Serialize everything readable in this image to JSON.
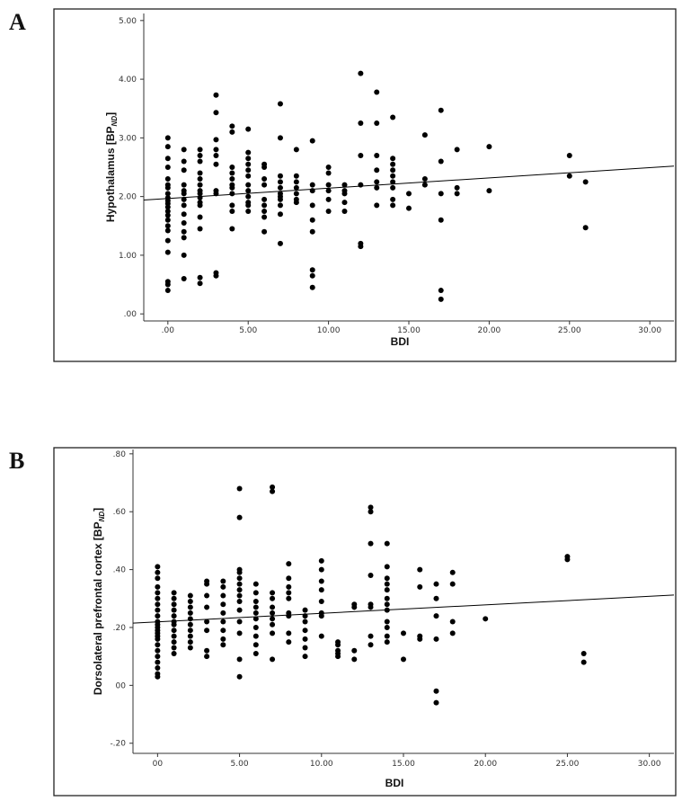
{
  "panels": [
    {
      "letter": "A"
    },
    {
      "letter": "B"
    }
  ],
  "chart_data": [
    {
      "type": "scatter",
      "xlabel": "BDI",
      "ylabel_main": "Hypothalamus [BP",
      "ylabel_sub": "ND",
      "ylabel_end": "]",
      "xlim": [
        -1.5,
        31.5
      ],
      "ylim": [
        -0.12,
        5.12
      ],
      "xticks": [
        0,
        5,
        10,
        15,
        20,
        25,
        30
      ],
      "xtick_labels": [
        ".00",
        "5.00",
        "10.00",
        "15.00",
        "20.00",
        "25.00",
        "30.00"
      ],
      "yticks": [
        0,
        1,
        2,
        3,
        4,
        5
      ],
      "ytick_labels": [
        ".00",
        "1.00",
        "2.00",
        "3.00",
        "4.00",
        "5.00"
      ],
      "fit_line": {
        "x": [
          -1.5,
          31.5
        ],
        "y": [
          1.94,
          2.52
        ]
      },
      "points": [
        [
          0,
          3.0
        ],
        [
          0,
          2.85
        ],
        [
          0,
          2.65
        ],
        [
          0,
          2.5
        ],
        [
          0,
          2.3
        ],
        [
          0,
          2.2
        ],
        [
          0,
          2.15
        ],
        [
          0,
          2.05
        ],
        [
          0,
          1.98
        ],
        [
          0,
          1.93
        ],
        [
          0,
          1.88
        ],
        [
          0,
          1.82
        ],
        [
          0,
          1.75
        ],
        [
          0,
          1.68
        ],
        [
          0,
          1.6
        ],
        [
          0,
          1.5
        ],
        [
          0,
          1.42
        ],
        [
          0,
          1.25
        ],
        [
          0,
          1.05
        ],
        [
          0,
          0.55
        ],
        [
          0,
          0.5
        ],
        [
          0,
          0.4
        ],
        [
          1,
          2.8
        ],
        [
          1,
          2.6
        ],
        [
          1,
          2.45
        ],
        [
          1,
          2.2
        ],
        [
          1,
          2.1
        ],
        [
          1,
          2.05
        ],
        [
          1,
          1.95
        ],
        [
          1,
          1.85
        ],
        [
          1,
          1.7
        ],
        [
          1,
          1.55
        ],
        [
          1,
          1.4
        ],
        [
          1,
          1.3
        ],
        [
          1,
          1.0
        ],
        [
          1,
          0.6
        ],
        [
          2,
          2.8
        ],
        [
          2,
          2.7
        ],
        [
          2,
          2.6
        ],
        [
          2,
          2.4
        ],
        [
          2,
          2.3
        ],
        [
          2,
          2.2
        ],
        [
          2,
          2.1
        ],
        [
          2,
          2.05
        ],
        [
          2,
          1.98
        ],
        [
          2,
          1.9
        ],
        [
          2,
          1.85
        ],
        [
          2,
          1.65
        ],
        [
          2,
          1.45
        ],
        [
          2,
          0.62
        ],
        [
          2,
          0.52
        ],
        [
          3,
          3.73
        ],
        [
          3,
          3.43
        ],
        [
          3,
          2.97
        ],
        [
          3,
          2.8
        ],
        [
          3,
          2.7
        ],
        [
          3,
          2.55
        ],
        [
          3,
          2.1
        ],
        [
          3,
          2.05
        ],
        [
          3,
          0.7
        ],
        [
          3,
          0.65
        ],
        [
          4,
          3.2
        ],
        [
          4,
          3.1
        ],
        [
          4,
          2.5
        ],
        [
          4,
          2.4
        ],
        [
          4,
          2.3
        ],
        [
          4,
          2.2
        ],
        [
          4,
          2.15
        ],
        [
          4,
          2.05
        ],
        [
          4,
          1.85
        ],
        [
          4,
          1.75
        ],
        [
          4,
          1.45
        ],
        [
          5,
          3.15
        ],
        [
          5,
          2.75
        ],
        [
          5,
          2.65
        ],
        [
          5,
          2.55
        ],
        [
          5,
          2.45
        ],
        [
          5,
          2.35
        ],
        [
          5,
          2.2
        ],
        [
          5,
          2.1
        ],
        [
          5,
          2.0
        ],
        [
          5,
          1.9
        ],
        [
          5,
          1.85
        ],
        [
          5,
          1.75
        ],
        [
          6,
          2.55
        ],
        [
          6,
          2.5
        ],
        [
          6,
          2.3
        ],
        [
          6,
          2.2
        ],
        [
          6,
          1.95
        ],
        [
          6,
          1.85
        ],
        [
          6,
          1.75
        ],
        [
          6,
          1.65
        ],
        [
          6,
          1.4
        ],
        [
          7,
          3.58
        ],
        [
          7,
          3.0
        ],
        [
          7,
          2.35
        ],
        [
          7,
          2.25
        ],
        [
          7,
          2.15
        ],
        [
          7,
          2.05
        ],
        [
          7,
          2.0
        ],
        [
          7,
          1.95
        ],
        [
          7,
          1.85
        ],
        [
          7,
          1.7
        ],
        [
          7,
          1.2
        ],
        [
          8,
          2.8
        ],
        [
          8,
          2.35
        ],
        [
          8,
          2.25
        ],
        [
          8,
          2.15
        ],
        [
          8,
          2.05
        ],
        [
          8,
          1.95
        ],
        [
          8,
          1.9
        ],
        [
          9,
          2.95
        ],
        [
          9,
          2.2
        ],
        [
          9,
          2.1
        ],
        [
          9,
          1.85
        ],
        [
          9,
          1.6
        ],
        [
          9,
          1.4
        ],
        [
          9,
          0.75
        ],
        [
          9,
          0.65
        ],
        [
          9,
          0.45
        ],
        [
          10,
          2.5
        ],
        [
          10,
          2.4
        ],
        [
          10,
          2.2
        ],
        [
          10,
          2.1
        ],
        [
          10,
          1.95
        ],
        [
          10,
          1.75
        ],
        [
          11,
          2.2
        ],
        [
          11,
          2.1
        ],
        [
          11,
          2.05
        ],
        [
          11,
          1.9
        ],
        [
          11,
          1.75
        ],
        [
          12,
          4.1
        ],
        [
          12,
          3.25
        ],
        [
          12,
          2.7
        ],
        [
          12,
          2.2
        ],
        [
          12,
          1.2
        ],
        [
          12,
          1.15
        ],
        [
          13,
          3.78
        ],
        [
          13,
          3.25
        ],
        [
          13,
          2.7
        ],
        [
          13,
          2.45
        ],
        [
          13,
          2.25
        ],
        [
          13,
          2.15
        ],
        [
          13,
          1.85
        ],
        [
          14,
          3.35
        ],
        [
          14,
          2.65
        ],
        [
          14,
          2.55
        ],
        [
          14,
          2.45
        ],
        [
          14,
          2.35
        ],
        [
          14,
          2.25
        ],
        [
          14,
          2.15
        ],
        [
          14,
          1.95
        ],
        [
          14,
          1.85
        ],
        [
          15,
          2.05
        ],
        [
          15,
          1.8
        ],
        [
          16,
          3.05
        ],
        [
          16,
          2.3
        ],
        [
          16,
          2.2
        ],
        [
          17,
          3.47
        ],
        [
          17,
          2.6
        ],
        [
          17,
          2.05
        ],
        [
          17,
          1.6
        ],
        [
          17,
          0.4
        ],
        [
          17,
          0.25
        ],
        [
          18,
          2.8
        ],
        [
          18,
          2.15
        ],
        [
          18,
          2.05
        ],
        [
          20,
          2.85
        ],
        [
          20,
          2.1
        ],
        [
          25,
          2.7
        ],
        [
          25,
          2.35
        ],
        [
          26,
          2.25
        ],
        [
          26,
          1.47
        ]
      ]
    },
    {
      "type": "scatter",
      "xlabel": "BDI",
      "ylabel_main": "Dorsolateral prefrontal cortex [BP",
      "ylabel_sub": "ND",
      "ylabel_end": "]",
      "xlim": [
        -1.5,
        31.5
      ],
      "ylim": [
        -0.235,
        0.815
      ],
      "xticks": [
        0,
        5,
        10,
        15,
        20,
        25,
        30
      ],
      "xtick_labels": [
        "00",
        "5.00",
        "10.00",
        "15.00",
        "20.00",
        "25.00",
        "30.00"
      ],
      "yticks": [
        -0.2,
        0,
        0.2,
        0.4,
        0.6,
        0.8
      ],
      "ytick_labels": [
        "-.20",
        "00",
        ".20",
        ".40",
        ".60",
        ".80"
      ],
      "fit_line": {
        "x": [
          -1.5,
          31.5
        ],
        "y": [
          0.215,
          0.312
        ]
      },
      "points": [
        [
          0,
          0.41
        ],
        [
          0,
          0.39
        ],
        [
          0,
          0.37
        ],
        [
          0,
          0.34
        ],
        [
          0,
          0.32
        ],
        [
          0,
          0.3
        ],
        [
          0,
          0.28
        ],
        [
          0,
          0.26
        ],
        [
          0,
          0.24
        ],
        [
          0,
          0.22
        ],
        [
          0,
          0.21
        ],
        [
          0,
          0.2
        ],
        [
          0,
          0.19
        ],
        [
          0,
          0.18
        ],
        [
          0,
          0.17
        ],
        [
          0,
          0.16
        ],
        [
          0,
          0.14
        ],
        [
          0,
          0.12
        ],
        [
          0,
          0.1
        ],
        [
          0,
          0.08
        ],
        [
          0,
          0.06
        ],
        [
          0,
          0.04
        ],
        [
          0,
          0.03
        ],
        [
          1,
          0.32
        ],
        [
          1,
          0.3
        ],
        [
          1,
          0.28
        ],
        [
          1,
          0.26
        ],
        [
          1,
          0.24
        ],
        [
          1,
          0.22
        ],
        [
          1,
          0.21
        ],
        [
          1,
          0.19
        ],
        [
          1,
          0.17
        ],
        [
          1,
          0.15
        ],
        [
          1,
          0.13
        ],
        [
          1,
          0.11
        ],
        [
          2,
          0.31
        ],
        [
          2,
          0.29
        ],
        [
          2,
          0.27
        ],
        [
          2,
          0.25
        ],
        [
          2,
          0.23
        ],
        [
          2,
          0.21
        ],
        [
          2,
          0.19
        ],
        [
          2,
          0.17
        ],
        [
          2,
          0.15
        ],
        [
          2,
          0.13
        ],
        [
          3,
          0.36
        ],
        [
          3,
          0.35
        ],
        [
          3,
          0.31
        ],
        [
          3,
          0.27
        ],
        [
          3,
          0.22
        ],
        [
          3,
          0.19
        ],
        [
          3,
          0.12
        ],
        [
          3,
          0.1
        ],
        [
          4,
          0.36
        ],
        [
          4,
          0.34
        ],
        [
          4,
          0.31
        ],
        [
          4,
          0.28
        ],
        [
          4,
          0.25
        ],
        [
          4,
          0.22
        ],
        [
          4,
          0.19
        ],
        [
          4,
          0.16
        ],
        [
          4,
          0.14
        ],
        [
          5,
          0.68
        ],
        [
          5,
          0.58
        ],
        [
          5,
          0.4
        ],
        [
          5,
          0.39
        ],
        [
          5,
          0.37
        ],
        [
          5,
          0.35
        ],
        [
          5,
          0.33
        ],
        [
          5,
          0.31
        ],
        [
          5,
          0.29
        ],
        [
          5,
          0.26
        ],
        [
          5,
          0.22
        ],
        [
          5,
          0.18
        ],
        [
          5,
          0.09
        ],
        [
          5,
          0.03
        ],
        [
          6,
          0.35
        ],
        [
          6,
          0.32
        ],
        [
          6,
          0.29
        ],
        [
          6,
          0.27
        ],
        [
          6,
          0.25
        ],
        [
          6,
          0.23
        ],
        [
          6,
          0.2
        ],
        [
          6,
          0.17
        ],
        [
          6,
          0.14
        ],
        [
          6,
          0.11
        ],
        [
          7,
          0.685
        ],
        [
          7,
          0.67
        ],
        [
          7,
          0.32
        ],
        [
          7,
          0.3
        ],
        [
          7,
          0.27
        ],
        [
          7,
          0.25
        ],
        [
          7,
          0.23
        ],
        [
          7,
          0.21
        ],
        [
          7,
          0.18
        ],
        [
          7,
          0.09
        ],
        [
          8,
          0.42
        ],
        [
          8,
          0.37
        ],
        [
          8,
          0.34
        ],
        [
          8,
          0.32
        ],
        [
          8,
          0.3
        ],
        [
          8,
          0.25
        ],
        [
          8,
          0.24
        ],
        [
          8,
          0.18
        ],
        [
          8,
          0.15
        ],
        [
          9,
          0.26
        ],
        [
          9,
          0.24
        ],
        [
          9,
          0.22
        ],
        [
          9,
          0.19
        ],
        [
          9,
          0.16
        ],
        [
          9,
          0.13
        ],
        [
          9,
          0.1
        ],
        [
          10,
          0.43
        ],
        [
          10,
          0.4
        ],
        [
          10,
          0.36
        ],
        [
          10,
          0.33
        ],
        [
          10,
          0.29
        ],
        [
          10,
          0.25
        ],
        [
          10,
          0.24
        ],
        [
          10,
          0.17
        ],
        [
          11,
          0.15
        ],
        [
          11,
          0.14
        ],
        [
          11,
          0.12
        ],
        [
          11,
          0.11
        ],
        [
          11,
          0.1
        ],
        [
          12,
          0.28
        ],
        [
          12,
          0.27
        ],
        [
          12,
          0.12
        ],
        [
          12,
          0.09
        ],
        [
          13,
          0.615
        ],
        [
          13,
          0.6
        ],
        [
          13,
          0.49
        ],
        [
          13,
          0.38
        ],
        [
          13,
          0.28
        ],
        [
          13,
          0.27
        ],
        [
          13,
          0.17
        ],
        [
          13,
          0.14
        ],
        [
          14,
          0.49
        ],
        [
          14,
          0.41
        ],
        [
          14,
          0.37
        ],
        [
          14,
          0.35
        ],
        [
          14,
          0.33
        ],
        [
          14,
          0.3
        ],
        [
          14,
          0.28
        ],
        [
          14,
          0.26
        ],
        [
          14,
          0.22
        ],
        [
          14,
          0.2
        ],
        [
          14,
          0.17
        ],
        [
          14,
          0.15
        ],
        [
          15,
          0.18
        ],
        [
          15,
          0.09
        ],
        [
          16,
          0.4
        ],
        [
          16,
          0.34
        ],
        [
          16,
          0.17
        ],
        [
          16,
          0.16
        ],
        [
          17,
          0.35
        ],
        [
          17,
          0.3
        ],
        [
          17,
          0.24
        ],
        [
          17,
          0.16
        ],
        [
          17,
          -0.02
        ],
        [
          17,
          -0.06
        ],
        [
          18,
          0.39
        ],
        [
          18,
          0.35
        ],
        [
          18,
          0.22
        ],
        [
          18,
          0.18
        ],
        [
          20,
          0.23
        ],
        [
          25,
          0.445
        ],
        [
          25,
          0.435
        ],
        [
          26,
          0.11
        ],
        [
          26,
          0.08
        ]
      ]
    }
  ]
}
